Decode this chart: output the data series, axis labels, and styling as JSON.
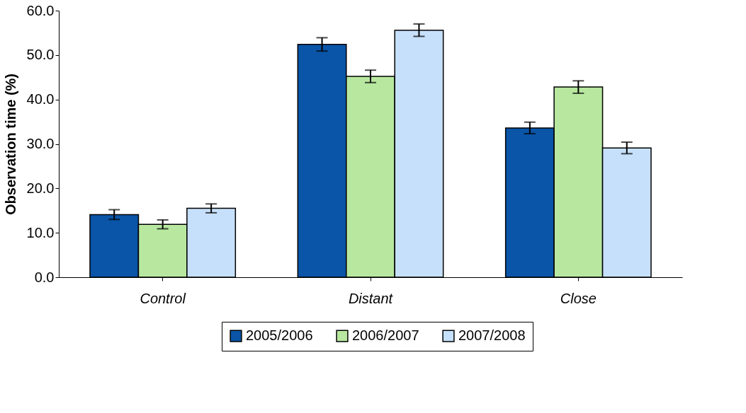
{
  "chart_data": {
    "type": "bar",
    "ylabel": "Observation time (%)",
    "categories": [
      "Control",
      "Distant",
      "Close"
    ],
    "series": [
      {
        "name": "2005/2006",
        "color": "#0a55a8",
        "values": [
          14.1,
          52.4,
          33.6
        ],
        "errors": [
          1.1,
          1.5,
          1.3
        ]
      },
      {
        "name": "2006/2007",
        "color": "#b8e8a0",
        "values": [
          11.9,
          45.2,
          42.8
        ],
        "errors": [
          1.0,
          1.4,
          1.4
        ]
      },
      {
        "name": "2007/2008",
        "color": "#c6e0fb",
        "values": [
          15.5,
          55.6,
          29.1
        ],
        "errors": [
          1.0,
          1.4,
          1.3
        ]
      }
    ],
    "ylim": [
      0,
      60
    ],
    "yticks": [
      {
        "value": 0,
        "label": "0.0"
      },
      {
        "value": 10,
        "label": "10.0"
      },
      {
        "value": 20,
        "label": "20.0"
      },
      {
        "value": 30,
        "label": "30.0"
      },
      {
        "value": 40,
        "label": "40.0"
      },
      {
        "value": 50,
        "label": "50.0"
      },
      {
        "value": 60,
        "label": "60.0"
      }
    ],
    "grid": false,
    "legend": "bottom"
  }
}
